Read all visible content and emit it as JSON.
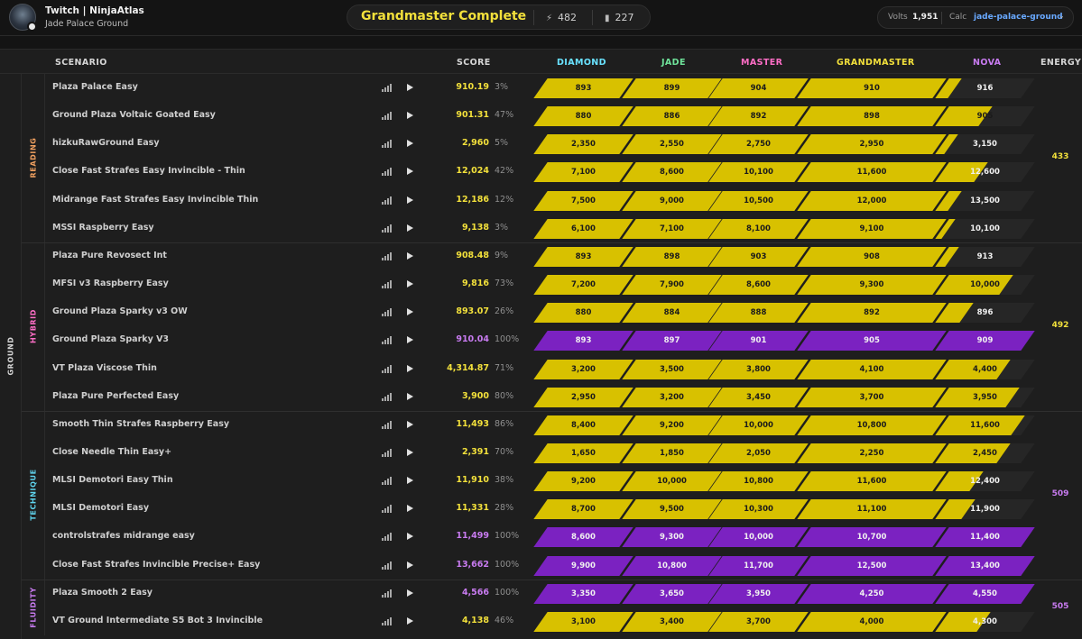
{
  "header": {
    "streamer": "Twitch | NinjaAtlas",
    "benchmark": "Jade Palace Ground",
    "rank_title": "Grandmaster Complete",
    "stat1": "482",
    "stat1_icon": "bolt-icon",
    "stat2": "227",
    "stat2_icon": "bar-chart-icon",
    "volts_label": "Volts",
    "volts_value": "1,951",
    "calc_label": "Calc",
    "calc_value": "jade-palace-ground"
  },
  "colors": {
    "diamond": "#69e2ff",
    "jade": "#6fe39a",
    "master": "#ff6ec7",
    "grandmaster": "#f2e03b",
    "nova": "#c87bf0",
    "fill_yellow": "#d8c100",
    "fill_purple": "#7b22c1"
  },
  "columns": {
    "scenario": "SCENARIO",
    "score": "SCORE",
    "diamond": "DIAMOND",
    "jade": "JADE",
    "master": "MASTER",
    "grandmaster": "GRANDMASTER",
    "nova": "NOVA",
    "energy": "ENERGY"
  },
  "ground_label": "GROUND",
  "categories": [
    {
      "name": "READING",
      "color": "#f0a060",
      "energy": "433",
      "energy_color": "#f2e03b",
      "rows": [
        {
          "name": "Plaza Palace Easy",
          "score": "910.19",
          "pct": "3%",
          "purple": false,
          "nova_fill": 0.15,
          "thresholds": [
            "893",
            "899",
            "904",
            "910",
            "916"
          ]
        },
        {
          "name": "Ground Plaza Voltaic Goated Easy",
          "score": "901.31",
          "pct": "47%",
          "purple": false,
          "nova_fill": 0.5,
          "thresholds": [
            "880",
            "886",
            "892",
            "898",
            "905"
          ]
        },
        {
          "name": "hizkuRawGround Easy",
          "score": "2,960",
          "pct": "5%",
          "purple": false,
          "nova_fill": 0.1,
          "thresholds": [
            "2,350",
            "2,550",
            "2,750",
            "2,950",
            "3,150"
          ]
        },
        {
          "name": "Close Fast Strafes Easy Invincible - Thin",
          "score": "12,024",
          "pct": "42%",
          "purple": false,
          "nova_fill": 0.45,
          "thresholds": [
            "7,100",
            "8,600",
            "10,100",
            "11,600",
            "12,600"
          ]
        },
        {
          "name": "Midrange Fast Strafes Easy Invincible Thin",
          "score": "12,186",
          "pct": "12%",
          "purple": false,
          "nova_fill": 0.15,
          "thresholds": [
            "7,500",
            "9,000",
            "10,500",
            "12,000",
            "13,500"
          ]
        },
        {
          "name": "MSSI Raspberry Easy",
          "score": "9,138",
          "pct": "3%",
          "purple": false,
          "nova_fill": 0.07,
          "thresholds": [
            "6,100",
            "7,100",
            "8,100",
            "9,100",
            "10,100"
          ]
        }
      ]
    },
    {
      "name": "HYBRID",
      "color": "#ff6ec7",
      "energy": "492",
      "energy_color": "#f2e03b",
      "rows": [
        {
          "name": "Plaza Pure Revosect Int",
          "score": "908.48",
          "pct": "9%",
          "purple": false,
          "nova_fill": 0.12,
          "thresholds": [
            "893",
            "898",
            "903",
            "908",
            "913"
          ]
        },
        {
          "name": "MFSI v3 Raspberry Easy",
          "score": "9,816",
          "pct": "73%",
          "purple": false,
          "nova_fill": 0.75,
          "thresholds": [
            "7,200",
            "7,900",
            "8,600",
            "9,300",
            "10,000"
          ]
        },
        {
          "name": "Ground Plaza Sparky v3 OW",
          "score": "893.07",
          "pct": "26%",
          "purple": false,
          "nova_fill": 0.28,
          "thresholds": [
            "880",
            "884",
            "888",
            "892",
            "896"
          ]
        },
        {
          "name": "Ground Plaza Sparky V3",
          "score": "910.04",
          "pct": "100%",
          "purple": true,
          "nova_fill": 1,
          "thresholds": [
            "893",
            "897",
            "901",
            "905",
            "909"
          ]
        },
        {
          "name": "VT Plaza Viscose Thin",
          "score": "4,314.87",
          "pct": "71%",
          "purple": false,
          "nova_fill": 0.72,
          "thresholds": [
            "3,200",
            "3,500",
            "3,800",
            "4,100",
            "4,400"
          ]
        },
        {
          "name": "Plaza Pure Perfected Easy",
          "score": "3,900",
          "pct": "80%",
          "purple": false,
          "nova_fill": 0.82,
          "thresholds": [
            "2,950",
            "3,200",
            "3,450",
            "3,700",
            "3,950"
          ]
        }
      ]
    },
    {
      "name": "TECHNIQUE",
      "color": "#5fd4ee",
      "energy": "509",
      "energy_color": "#c87bf0",
      "rows": [
        {
          "name": "Smooth Thin Strafes Raspberry Easy",
          "score": "11,493",
          "pct": "86%",
          "purple": false,
          "nova_fill": 0.88,
          "thresholds": [
            "8,400",
            "9,200",
            "10,000",
            "10,800",
            "11,600"
          ]
        },
        {
          "name": "Close Needle Thin Easy+",
          "score": "2,391",
          "pct": "70%",
          "purple": false,
          "nova_fill": 0.72,
          "thresholds": [
            "1,650",
            "1,850",
            "2,050",
            "2,250",
            "2,450"
          ]
        },
        {
          "name": "MLSI Demotori Easy Thin",
          "score": "11,910",
          "pct": "38%",
          "purple": false,
          "nova_fill": 0.4,
          "thresholds": [
            "9,200",
            "10,000",
            "10,800",
            "11,600",
            "12,400"
          ]
        },
        {
          "name": "MLSI Demotori Easy",
          "score": "11,331",
          "pct": "28%",
          "purple": false,
          "nova_fill": 0.3,
          "thresholds": [
            "8,700",
            "9,500",
            "10,300",
            "11,100",
            "11,900"
          ]
        },
        {
          "name": "controlstrafes midrange easy",
          "score": "11,499",
          "pct": "100%",
          "purple": true,
          "nova_fill": 1,
          "thresholds": [
            "8,600",
            "9,300",
            "10,000",
            "10,700",
            "11,400"
          ]
        },
        {
          "name": "Close Fast Strafes Invincible Precise+ Easy",
          "score": "13,662",
          "pct": "100%",
          "purple": true,
          "nova_fill": 1,
          "thresholds": [
            "9,900",
            "10,800",
            "11,700",
            "12,500",
            "13,400"
          ]
        }
      ]
    },
    {
      "name": "FLUIDITY",
      "color": "#c87bf0",
      "energy": "505",
      "energy_color": "#c87bf0",
      "rows": [
        {
          "name": "Plaza Smooth 2 Easy",
          "score": "4,566",
          "pct": "100%",
          "purple": true,
          "nova_fill": 1,
          "thresholds": [
            "3,350",
            "3,650",
            "3,950",
            "4,250",
            "4,550"
          ]
        },
        {
          "name": "VT Ground Intermediate S5 Bot 3 Invincible",
          "score": "4,138",
          "pct": "46%",
          "purple": false,
          "nova_fill": 0.48,
          "thresholds": [
            "3,100",
            "3,400",
            "3,700",
            "4,000",
            "4,300"
          ]
        }
      ]
    }
  ]
}
